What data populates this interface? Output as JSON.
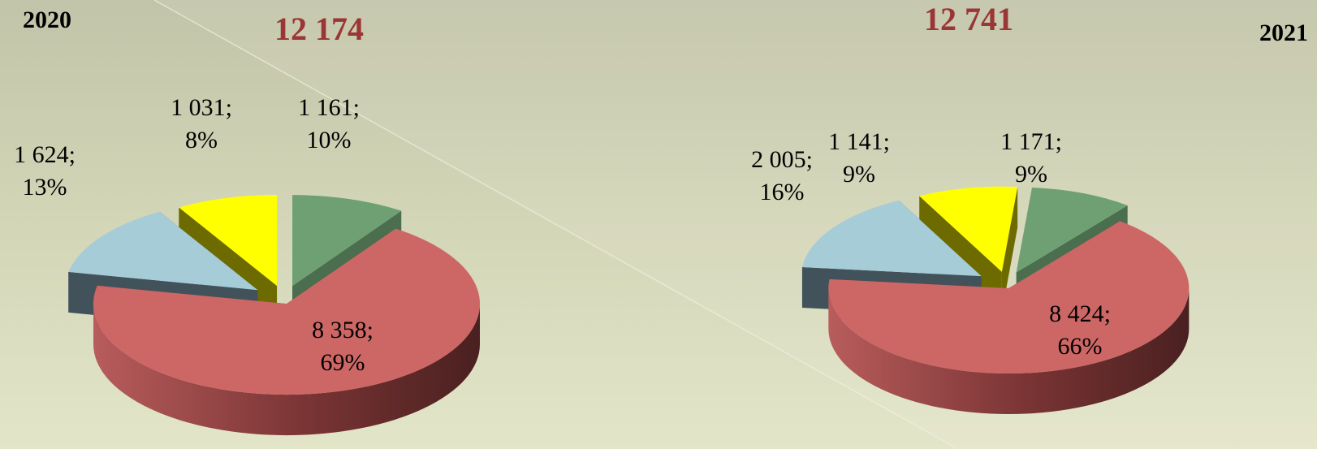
{
  "chart_data": [
    {
      "type": "pie",
      "title": "2020",
      "total": "12 174",
      "slices": [
        {
          "value": 1161,
          "value_label": "1 161;",
          "pct_label": "10%",
          "color": "#6fa074",
          "side": "#4b6e4e"
        },
        {
          "value": 8358,
          "value_label": "8 358;",
          "pct_label": "69%",
          "color": "#cd6766",
          "side": "#7a3434"
        },
        {
          "value": 1624,
          "value_label": "1 624;",
          "pct_label": "13%",
          "color": "#a5ccd7",
          "side": "#42525b"
        },
        {
          "value": 1031,
          "value_label": "1 031;",
          "pct_label": "8%",
          "color": "#ffff00",
          "side": "#6d6b00"
        }
      ]
    },
    {
      "type": "pie",
      "title": "2021",
      "total": "12 741",
      "slices": [
        {
          "value": 1171,
          "value_label": "1 171;",
          "pct_label": "9%",
          "color": "#6fa074",
          "side": "#4b6e4e"
        },
        {
          "value": 8424,
          "value_label": "8 424;",
          "pct_label": "66%",
          "color": "#cd6766",
          "side": "#7a3434"
        },
        {
          "value": 2005,
          "value_label": "2 005;",
          "pct_label": "16%",
          "color": "#a5ccd7",
          "side": "#42525b"
        },
        {
          "value": 1141,
          "value_label": "1 141;",
          "pct_label": "9%",
          "color": "#ffff00",
          "side": "#6d6b00"
        }
      ]
    }
  ]
}
